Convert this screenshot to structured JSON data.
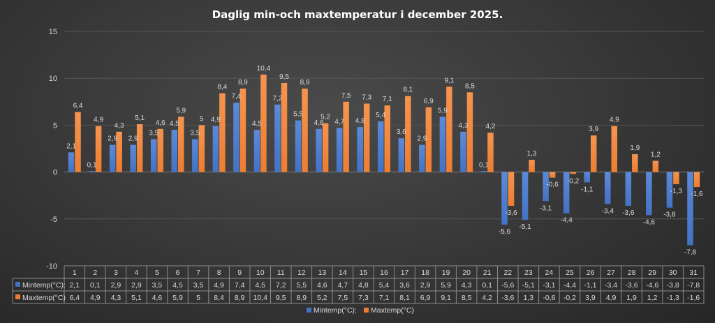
{
  "chart_data": {
    "type": "bar",
    "title": "Daglig min-och maxtemperatur i december 2025.",
    "categories": [
      "1",
      "2",
      "3",
      "4",
      "5",
      "6",
      "7",
      "8",
      "9",
      "10",
      "11",
      "12",
      "13",
      "14",
      "15",
      "16",
      "17",
      "18",
      "19",
      "20",
      "21",
      "22",
      "23",
      "24",
      "25",
      "26",
      "27",
      "28",
      "29",
      "30",
      "31"
    ],
    "ylim": [
      -10,
      15
    ],
    "yticks": [
      -10,
      -5,
      0,
      5,
      10,
      15
    ],
    "grid": true,
    "legend_position": "bottom",
    "data_table": true,
    "series": [
      {
        "name": "Mintemp(°C):",
        "color": "#4472c4",
        "values": [
          2.1,
          0.1,
          2.9,
          2.9,
          3.5,
          4.5,
          3.5,
          4.9,
          7.4,
          4.5,
          7.2,
          5.5,
          4.6,
          4.7,
          4.8,
          5.4,
          3.6,
          2.9,
          5.9,
          4.3,
          0.1,
          -5.6,
          -5.1,
          -3.1,
          -4.4,
          -1.1,
          -3.4,
          -3.6,
          -4.6,
          -3.8,
          -7.8
        ],
        "labels": [
          "2,1",
          "0,1",
          "2,9",
          "2,9",
          "3,5",
          "4,5",
          "3,5",
          "4,9",
          "7,4",
          "4,5",
          "7,2",
          "5,5",
          "4,6",
          "4,7",
          "4,8",
          "5,4",
          "3,6",
          "2,9",
          "5,9",
          "4,3",
          "0,1",
          "-5,6",
          "-5,1",
          "-3,1",
          "-4,4",
          "-1,1",
          "-3,4",
          "-3,6",
          "-4,6",
          "-3,8",
          "-7,8"
        ]
      },
      {
        "name": "Maxtemp(°C)",
        "color": "#ed7d31",
        "values": [
          6.4,
          4.9,
          4.3,
          5.1,
          4.6,
          5.9,
          5,
          8.4,
          8.9,
          10.4,
          9.5,
          8.9,
          5.2,
          7.5,
          7.3,
          7.1,
          8.1,
          6.9,
          9.1,
          8.5,
          4.2,
          -3.6,
          1.3,
          -0.6,
          -0.2,
          3.9,
          4.9,
          1.9,
          1.2,
          -1.3,
          -1.6
        ],
        "labels": [
          "6,4",
          "4,9",
          "4,3",
          "5,1",
          "4,6",
          "5,9",
          "5",
          "8,4",
          "8,9",
          "10,4",
          "9,5",
          "8,9",
          "5,2",
          "7,5",
          "7,3",
          "7,1",
          "8,1",
          "6,9",
          "9,1",
          "8,5",
          "4,2",
          "-3,6",
          "1,3",
          "-0,6",
          "-0,2",
          "3,9",
          "4,9",
          "1,9",
          "1,2",
          "-1,3",
          "-1,6"
        ]
      }
    ],
    "legend": [
      "Mintemp(°C):",
      "Maxtemp(°C)"
    ]
  }
}
